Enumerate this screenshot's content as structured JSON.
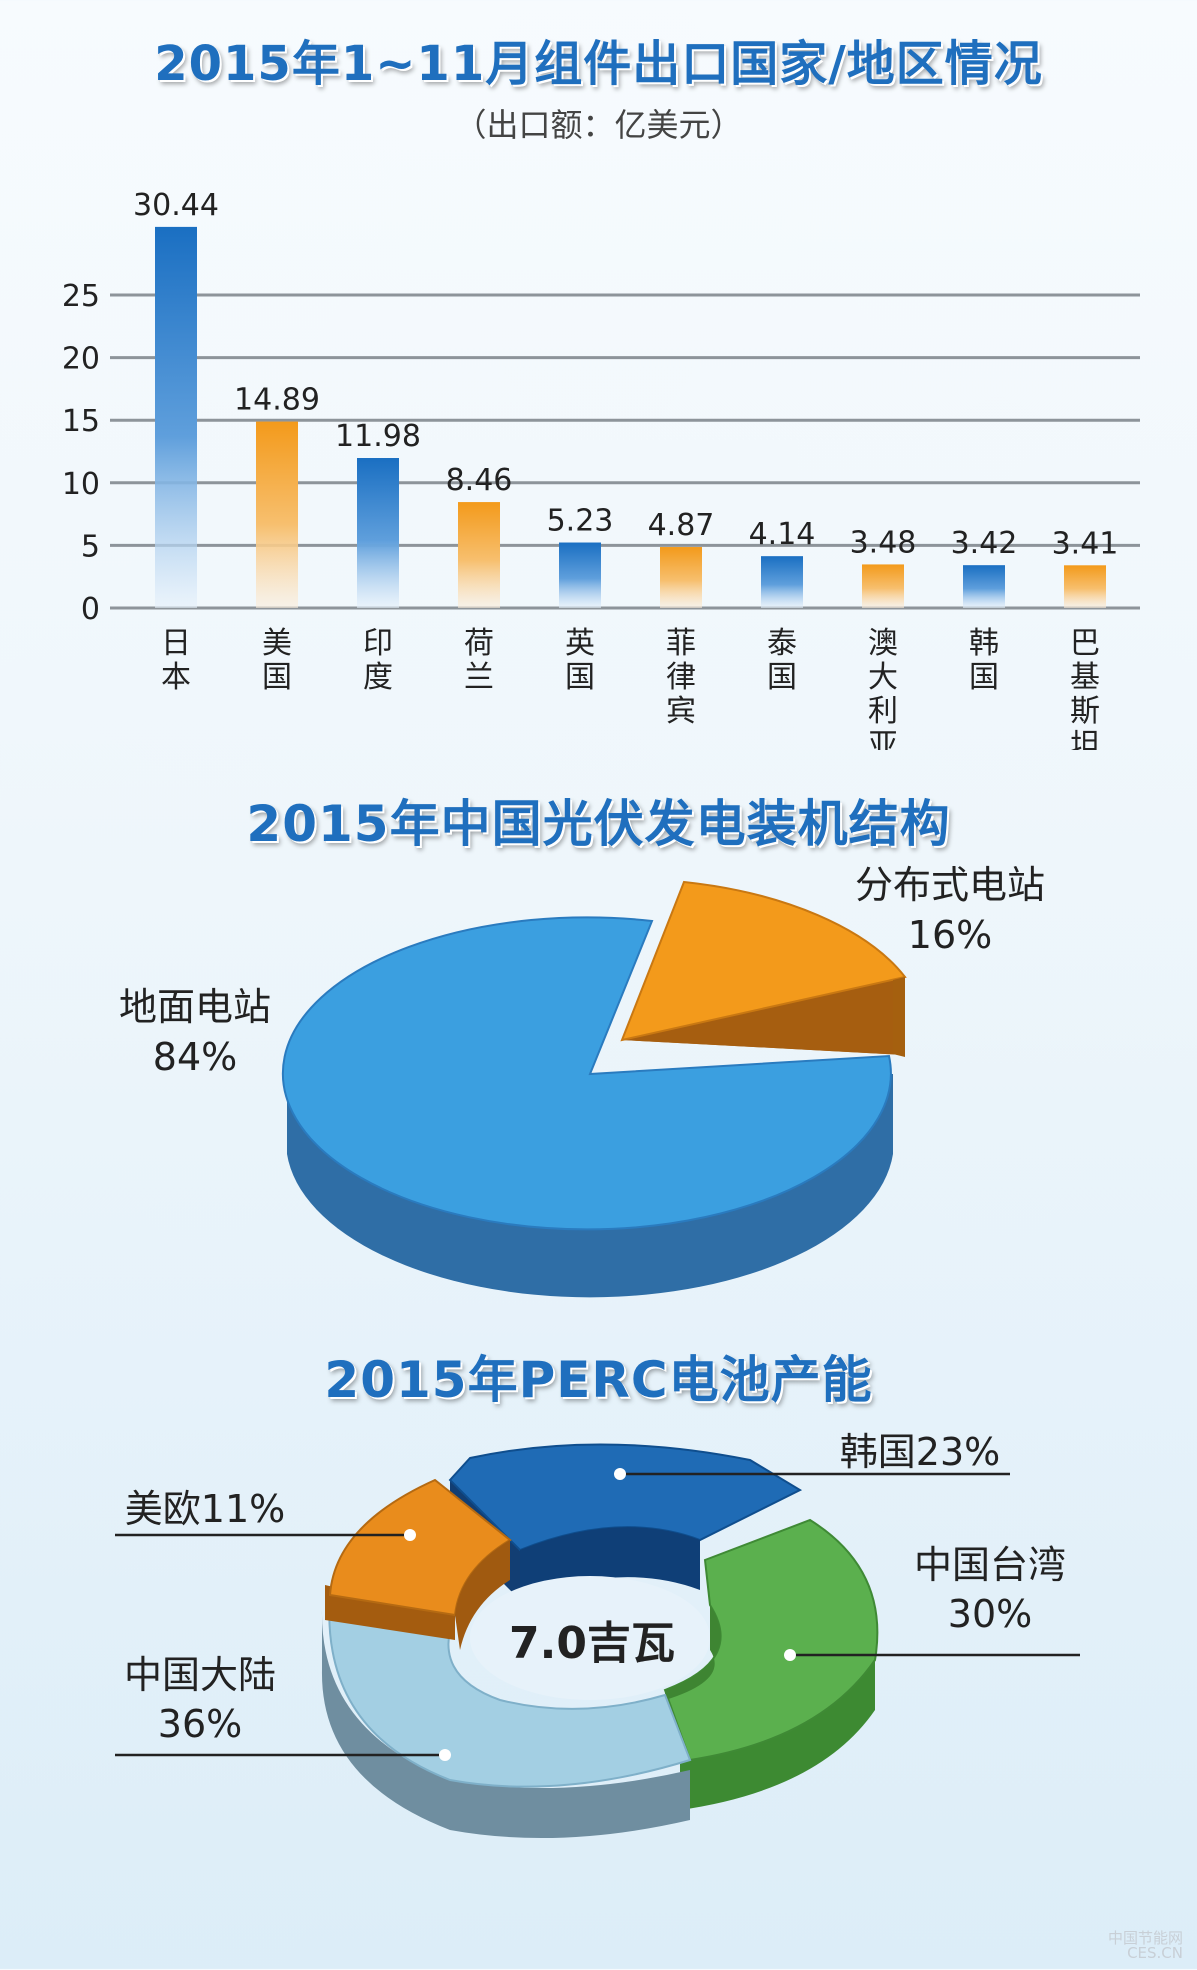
{
  "chart_data": [
    {
      "type": "bar",
      "title": "2015年1~11月组件出口国家/地区情况",
      "subtitle": "（出口额：亿美元）",
      "categories": [
        "日本",
        "美国",
        "印度",
        "荷兰",
        "英国",
        "菲律宾",
        "泰国",
        "澳大利亚",
        "韩国",
        "巴基斯坦"
      ],
      "values": [
        30.44,
        14.89,
        11.98,
        8.46,
        5.23,
        4.87,
        4.14,
        3.48,
        3.42,
        3.41
      ],
      "data_labels": [
        "30.44",
        "14.89",
        "11.98",
        "8.46",
        "5.23",
        "4.87",
        "4.14",
        "3.48",
        "3.42",
        "3.41"
      ],
      "yticks": [
        "0",
        "5",
        "10",
        "15",
        "20",
        "25"
      ],
      "ylim": [
        0,
        30
      ],
      "grid": true,
      "bar_colors": [
        "#1a6fc2",
        "#f39a1b",
        "#1a6fc2",
        "#f39a1b",
        "#1a6fc2",
        "#f39a1b",
        "#1a6fc2",
        "#f39a1b",
        "#1a6fc2",
        "#f39a1b"
      ]
    },
    {
      "type": "pie",
      "title": "2015年中国光伏发电装机结构",
      "slices": [
        {
          "label": "地面电站",
          "value_label": "84%",
          "value": 84,
          "color": "#3d9fe0"
        },
        {
          "label": "分布式电站",
          "value_label": "16%",
          "value": 16,
          "color": "#f39a1b"
        }
      ]
    },
    {
      "type": "pie",
      "title": "2015年PERC电池产能",
      "center_label": "7.0吉瓦",
      "slices": [
        {
          "label": "韩国",
          "value_label": "23%",
          "value": 23,
          "color": "#1f6bb5"
        },
        {
          "label": "中国台湾",
          "value_label": "30%",
          "value": 30,
          "color": "#5bb04e"
        },
        {
          "label": "中国大陆",
          "value_label": "36%",
          "value": 36,
          "color": "#a3cfe3"
        },
        {
          "label": "美欧",
          "value_label": "11%",
          "value": 11,
          "color": "#e98c1c"
        }
      ]
    }
  ],
  "watermark": {
    "line1": "中国节能网",
    "line2": "CES.CN"
  }
}
